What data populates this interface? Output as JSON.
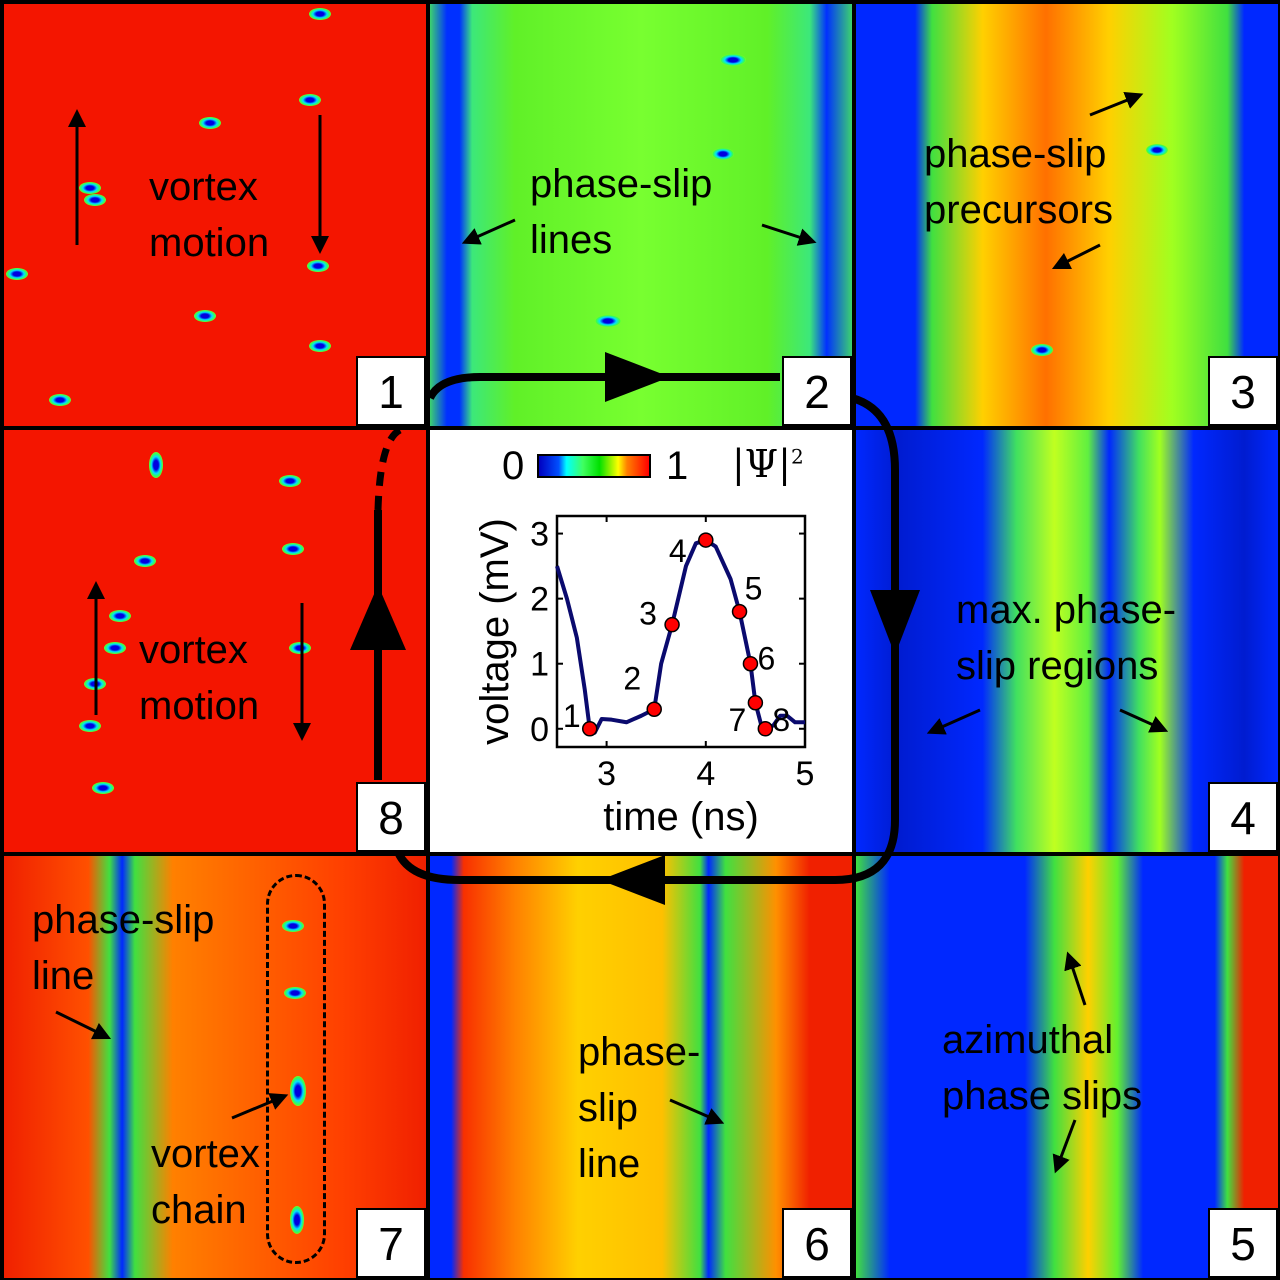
{
  "panels": [
    {
      "num": "1",
      "labels": [
        "vortex\nmotion"
      ]
    },
    {
      "num": "2",
      "labels": [
        "phase-slip\nlines"
      ]
    },
    {
      "num": "3",
      "labels": [
        "phase-slip\nprecursors"
      ]
    },
    {
      "num": "4",
      "labels": [
        "max. phase-\nslip regions"
      ]
    },
    {
      "num": "5",
      "labels": [
        "azimuthal\nphase slips"
      ]
    },
    {
      "num": "6",
      "labels": [
        "phase-\nslip\nline"
      ]
    },
    {
      "num": "7",
      "labels": [
        "phase-slip\nline",
        "vortex\nchain"
      ]
    },
    {
      "num": "8",
      "labels": [
        "vortex\nmotion"
      ]
    }
  ],
  "colorbar": {
    "min_label": "0",
    "max_label": "1",
    "quantity": "|Ψ|",
    "exponent": "2"
  },
  "colors": {
    "line": "#0a0a6e",
    "marker": "#ff0000"
  },
  "chart_data": {
    "type": "line",
    "xlabel": "time (ns)",
    "ylabel": "voltage (mV)",
    "xlim": [
      2.5,
      5
    ],
    "ylim": [
      -0.28,
      3.27
    ],
    "xticks": [
      "3",
      "4",
      "5"
    ],
    "yticks": [
      "0",
      "1",
      "2",
      "3"
    ],
    "x": [
      2.5,
      2.6,
      2.7,
      2.78,
      2.83,
      2.88,
      2.95,
      3.05,
      3.2,
      3.35,
      3.48,
      3.55,
      3.66,
      3.8,
      3.9,
      4.0,
      4.1,
      4.25,
      4.34,
      4.45,
      4.5,
      4.56,
      4.6,
      4.68,
      4.75,
      4.82,
      4.9,
      5.0
    ],
    "y": [
      2.5,
      2.0,
      1.4,
      0.6,
      0,
      -0.06,
      0.15,
      0.14,
      0.1,
      0.2,
      0.3,
      1.0,
      1.6,
      2.5,
      2.85,
      2.9,
      2.8,
      2.3,
      1.8,
      1.0,
      0.4,
      0.05,
      0,
      0.05,
      0.2,
      0.2,
      0.1,
      0.1
    ],
    "points": [
      {
        "label": "1",
        "x": 2.83,
        "y": 0
      },
      {
        "label": "2",
        "x": 3.48,
        "y": 0.3
      },
      {
        "label": "3",
        "x": 3.66,
        "y": 1.6
      },
      {
        "label": "4",
        "x": 4.0,
        "y": 2.9
      },
      {
        "label": "5",
        "x": 4.34,
        "y": 1.8
      },
      {
        "label": "6",
        "x": 4.45,
        "y": 1.0
      },
      {
        "label": "7",
        "x": 4.5,
        "y": 0.4
      },
      {
        "label": "8",
        "x": 4.6,
        "y": 0
      }
    ]
  }
}
